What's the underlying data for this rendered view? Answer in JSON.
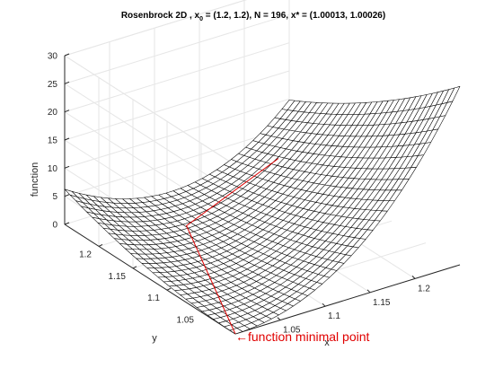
{
  "chart_data": {
    "type": "surface",
    "title_parts": {
      "prefix": "Rosenbrock 2D , x",
      "sub": "0",
      "suffix": " = (1.2, 1.2), N = 196, x* = (1.00013, 1.00026)"
    },
    "xlabel": "x",
    "ylabel": "y",
    "zlabel": "function",
    "xlim": [
      1.0,
      1.25
    ],
    "ylim": [
      1.0,
      1.25
    ],
    "zlim": [
      0,
      30
    ],
    "x_ticks": [
      {
        "v": 1.05,
        "label": "1.05"
      },
      {
        "v": 1.1,
        "label": "1.1"
      },
      {
        "v": 1.15,
        "label": "1.15"
      },
      {
        "v": 1.2,
        "label": "1.2"
      }
    ],
    "y_ticks": [
      {
        "v": 1.05,
        "label": "1.05"
      },
      {
        "v": 1.1,
        "label": "1.1"
      },
      {
        "v": 1.15,
        "label": "1.15"
      },
      {
        "v": 1.2,
        "label": "1.2"
      }
    ],
    "z_ticks": [
      {
        "v": 0,
        "label": "0"
      },
      {
        "v": 5,
        "label": "5"
      },
      {
        "v": 10,
        "label": "10"
      },
      {
        "v": 15,
        "label": "15"
      },
      {
        "v": 20,
        "label": "20"
      },
      {
        "v": 25,
        "label": "25"
      },
      {
        "v": 30,
        "label": "30"
      }
    ],
    "surface_function": "rosenbrock",
    "grid": true,
    "path": [
      {
        "x": 1.2,
        "y": 1.2
      },
      {
        "x": 1.09,
        "y": 1.19
      },
      {
        "x": 1.00013,
        "y": 1.00026
      }
    ],
    "annotation": "←function minimal point",
    "colors": {
      "mesh": "#000000",
      "surface_face": "#ffffff",
      "path": "#e00000",
      "annotation": "#e00000",
      "grid": "#e6e6e6",
      "axes": "#262626"
    }
  }
}
